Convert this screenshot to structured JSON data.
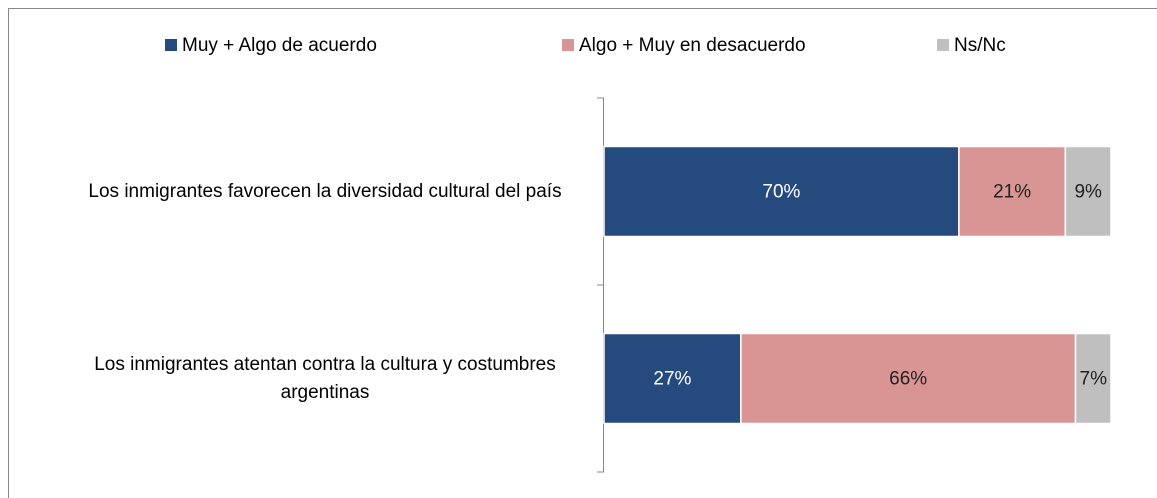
{
  "chart_data": {
    "type": "stacked_barh",
    "categories": [
      "Los inmigrantes favorecen la diversidad cultural del país",
      "Los inmigrantes atentan contra la cultura y costumbres argentinas"
    ],
    "series": [
      {
        "name": "Muy + Algo de acuerdo",
        "color": "#254b7e",
        "values": [
          70,
          27
        ],
        "value_labels": [
          "70%",
          "27%"
        ]
      },
      {
        "name": "Algo + Muy en desacuerdo",
        "color": "#d99594",
        "values": [
          21,
          66
        ],
        "value_labels": [
          "21%",
          "66%"
        ]
      },
      {
        "name": "Ns/Nc",
        "color": "#bfbfbf",
        "values": [
          9,
          7
        ],
        "value_labels": [
          "9%",
          "7%"
        ]
      }
    ],
    "xlim": [
      0,
      100
    ],
    "legend": "top"
  }
}
